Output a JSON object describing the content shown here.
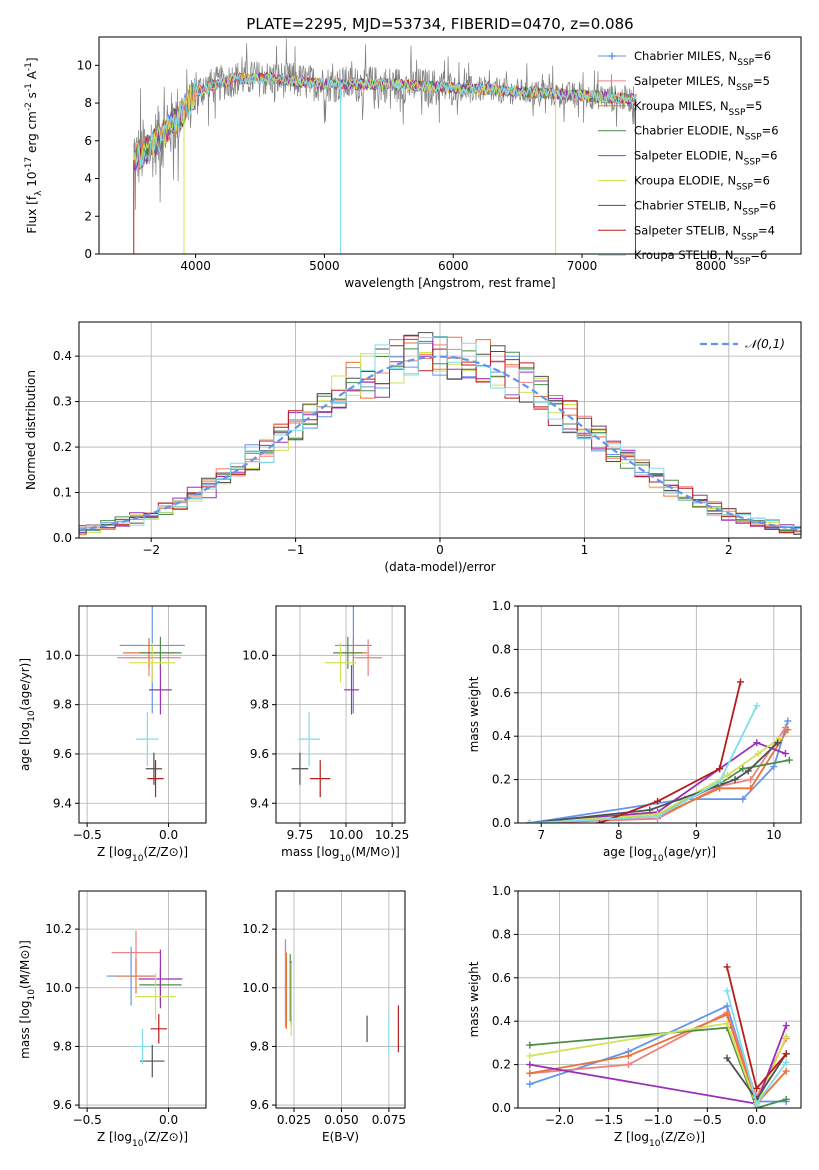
{
  "figure": {
    "title": "PLATE=2295, MJD=53734, FIBERID=0470, z=0.086"
  },
  "colors": [
    "#6495ED",
    "#F08080",
    "#E8743B",
    "#4C8C4A",
    "#9B30B8",
    "#D4E157",
    "#505050",
    "#B71C1C",
    "#80DEEA"
  ],
  "chart_data": [
    {
      "id": "spectrum",
      "type": "line",
      "title": "PLATE=2295, MJD=53734, FIBERID=0470, z=0.086",
      "xlabel": "wavelength [Angstrom, rest frame]",
      "ylabel": "Flux [f_λ 10^-17 erg cm^-2 s^-1 A^-1]",
      "xlim": [
        3250,
        8700
      ],
      "ylim": [
        0,
        11.5
      ],
      "xticks": [
        4000,
        5000,
        6000,
        7000,
        8000
      ],
      "yticks": [
        0,
        2,
        4,
        6,
        8,
        10
      ],
      "grid": false,
      "legend_position": "top-right",
      "continuum": {
        "x": [
          3520,
          3700,
          3900,
          4000,
          4300,
          4600,
          5000,
          5500,
          6000,
          6500,
          7000,
          7400
        ],
        "y": [
          5.0,
          6.0,
          7.5,
          8.6,
          9.3,
          9.3,
          9.0,
          9.0,
          8.8,
          8.6,
          8.4,
          8.2
        ]
      },
      "series": [
        {
          "name": "Chabrier MILES, N_SSP=6",
          "marker": "+"
        },
        {
          "name": "Salpeter MILES, N_SSP=5",
          "marker": "none"
        },
        {
          "name": "Kroupa MILES, N_SSP=5",
          "marker": "none"
        },
        {
          "name": "Chabrier ELODIE, N_SSP=6",
          "marker": "none"
        },
        {
          "name": "Salpeter ELODIE, N_SSP=6",
          "marker": "none"
        },
        {
          "name": "Kroupa ELODIE, N_SSP=6",
          "marker": "none"
        },
        {
          "name": "Chabrier STELIB, N_SSP=6",
          "marker": "none"
        },
        {
          "name": "Salpeter STELIB, N_SSP=4",
          "marker": "none"
        },
        {
          "name": "Kroupa STELIB, N_SSP=6",
          "marker": "none"
        }
      ]
    },
    {
      "id": "residuals",
      "type": "line",
      "xlabel": "(data-model)/error",
      "ylabel": "Normed distribution",
      "xlim": [
        -2.5,
        2.5
      ],
      "ylim": [
        0,
        0.475
      ],
      "xticks": [
        -2,
        -1,
        0,
        1,
        2
      ],
      "yticks": [
        0.0,
        0.1,
        0.2,
        0.3,
        0.4
      ],
      "grid": true,
      "legend_position": "top-right",
      "gaussian_label": "𝒩(0,1)",
      "gaussian": {
        "mean": 0,
        "sigma": 1
      }
    },
    {
      "id": "age-vs-Z",
      "type": "scatter",
      "xlabel": "Z [log10(Z/Z⊙)]",
      "ylabel": "age  [log10(age/yr)]",
      "xlim": [
        -0.55,
        0.23
      ],
      "ylim": [
        9.32,
        10.2
      ],
      "xticks": [
        -0.5,
        0.0
      ],
      "yticks": [
        9.4,
        9.6,
        9.8,
        10.0
      ],
      "grid": true,
      "points": [
        {
          "x": -0.1,
          "y": 10.04,
          "xerr": 0.4,
          "yerr": 0.55
        },
        {
          "x": -0.12,
          "y": 9.99,
          "xerr": 0.39,
          "yerr": 0.15
        },
        {
          "x": -0.12,
          "y": 10.01,
          "xerr": 0.32,
          "yerr": 0.12
        },
        {
          "x": -0.05,
          "y": 10.01,
          "xerr": 0.26,
          "yerr": 0.13
        },
        {
          "x": -0.05,
          "y": 9.86,
          "xerr": 0.14,
          "yerr": 0.2
        },
        {
          "x": -0.1,
          "y": 9.97,
          "xerr": 0.28,
          "yerr": 0.16
        },
        {
          "x": -0.09,
          "y": 9.54,
          "xerr": 0.1,
          "yerr": 0.13
        },
        {
          "x": -0.08,
          "y": 9.5,
          "xerr": 0.1,
          "yerr": 0.15
        },
        {
          "x": -0.13,
          "y": 9.66,
          "xerr": 0.14,
          "yerr": 0.22
        }
      ]
    },
    {
      "id": "age-vs-mass",
      "type": "scatter",
      "xlabel": "mass [log10(M/M⊙)]",
      "ylabel": "",
      "xlim": [
        9.62,
        10.32
      ],
      "ylim": [
        9.32,
        10.2
      ],
      "xticks": [
        9.75,
        10.0,
        10.25
      ],
      "yticks": [
        9.4,
        9.6,
        9.8,
        10.0
      ],
      "grid": true,
      "points": [
        {
          "x": 10.04,
          "y": 10.04,
          "xerr": 0.2,
          "yerr": 0.55
        },
        {
          "x": 10.12,
          "y": 9.99,
          "xerr": 0.15,
          "yerr": 0.15
        },
        {
          "x": 10.04,
          "y": 10.01,
          "xerr": 0.15,
          "yerr": 0.12
        },
        {
          "x": 10.01,
          "y": 10.01,
          "xerr": 0.16,
          "yerr": 0.13
        },
        {
          "x": 10.03,
          "y": 9.86,
          "xerr": 0.08,
          "yerr": 0.2
        },
        {
          "x": 9.97,
          "y": 9.97,
          "xerr": 0.17,
          "yerr": 0.16
        },
        {
          "x": 9.75,
          "y": 9.54,
          "xerr": 0.09,
          "yerr": 0.13
        },
        {
          "x": 9.86,
          "y": 9.5,
          "xerr": 0.11,
          "yerr": 0.15
        },
        {
          "x": 9.8,
          "y": 9.66,
          "xerr": 0.12,
          "yerr": 0.22
        }
      ]
    },
    {
      "id": "massweight-vs-age",
      "type": "line",
      "xlabel": "age  [log10(age/yr)]",
      "ylabel": "mass weight",
      "xlim": [
        6.7,
        10.35
      ],
      "ylim": [
        0,
        1.0
      ],
      "xticks": [
        7,
        8,
        9,
        10
      ],
      "yticks": [
        0.0,
        0.2,
        0.4,
        0.6,
        0.8,
        1.0
      ],
      "grid": true,
      "series": [
        {
          "x": [
            6.85,
            8.85,
            9.6,
            10.0,
            10.18
          ],
          "y": [
            0.0,
            0.11,
            0.11,
            0.26,
            0.47
          ]
        },
        {
          "x": [
            6.85,
            8.5,
            9.3,
            9.7,
            10.15
          ],
          "y": [
            0.0,
            0.02,
            0.17,
            0.2,
            0.44
          ]
        },
        {
          "x": [
            6.85,
            8.5,
            9.3,
            9.7,
            10.18
          ],
          "y": [
            0.0,
            0.03,
            0.16,
            0.16,
            0.43
          ]
        },
        {
          "x": [
            6.85,
            8.5,
            9.3,
            9.6,
            10.2
          ],
          "y": [
            0.0,
            0.04,
            0.18,
            0.25,
            0.29
          ]
        },
        {
          "x": [
            6.85,
            8.5,
            9.3,
            9.78,
            10.15
          ],
          "y": [
            0.0,
            0.05,
            0.25,
            0.37,
            0.32
          ]
        },
        {
          "x": [
            6.85,
            8.5,
            9.4,
            9.8,
            10.07
          ],
          "y": [
            0.0,
            0.04,
            0.22,
            0.32,
            0.39
          ]
        },
        {
          "x": [
            6.85,
            8.4,
            9.5,
            9.67,
            10.05
          ],
          "y": [
            0.0,
            0.06,
            0.2,
            0.24,
            0.37
          ]
        },
        {
          "x": [
            7.75,
            8.5,
            9.3,
            9.57
          ],
          "y": [
            0.0,
            0.1,
            0.25,
            0.65
          ]
        },
        {
          "x": [
            6.85,
            8.5,
            9.3,
            9.78
          ],
          "y": [
            0.0,
            0.03,
            0.19,
            0.54
          ]
        }
      ]
    },
    {
      "id": "mass-vs-Z",
      "type": "scatter",
      "xlabel": "Z [log10(Z/Z⊙)]",
      "ylabel": "mass [log10(M/M⊙)]",
      "xlim": [
        -0.55,
        0.23
      ],
      "ylim": [
        9.59,
        10.33
      ],
      "xticks": [
        -0.5,
        0.0
      ],
      "yticks": [
        9.6,
        9.8,
        10.0,
        10.2
      ],
      "grid": true,
      "points": [
        {
          "x": -0.23,
          "y": 10.04,
          "xerr": 0.3,
          "yerr": 0.2
        },
        {
          "x": -0.2,
          "y": 10.12,
          "xerr": 0.3,
          "yerr": 0.15
        },
        {
          "x": -0.2,
          "y": 10.04,
          "xerr": 0.25,
          "yerr": 0.12
        },
        {
          "x": -0.05,
          "y": 10.01,
          "xerr": 0.26,
          "yerr": 0.12
        },
        {
          "x": -0.05,
          "y": 10.03,
          "xerr": 0.27,
          "yerr": 0.2
        },
        {
          "x": -0.08,
          "y": 9.97,
          "xerr": 0.25,
          "yerr": 0.16
        },
        {
          "x": -0.1,
          "y": 9.75,
          "xerr": 0.15,
          "yerr": 0.11
        },
        {
          "x": -0.06,
          "y": 9.86,
          "xerr": 0.1,
          "yerr": 0.1
        },
        {
          "x": -0.16,
          "y": 9.8,
          "xerr": 0.1,
          "yerr": 0.12
        }
      ]
    },
    {
      "id": "mass-vs-EBV",
      "type": "scatter",
      "xlabel": "E(B-V)",
      "ylabel": "",
      "xlim": [
        0.0155,
        0.0835
      ],
      "ylim": [
        9.59,
        10.33
      ],
      "xticks": [
        0.025,
        0.05,
        0.075
      ],
      "yticks": [
        9.6,
        9.8,
        10.0,
        10.2
      ],
      "grid": true,
      "points": [
        {
          "x": 0.0205,
          "y": 10.03,
          "xerr": 0.0,
          "yerr": 0.27
        },
        {
          "x": 0.0205,
          "y": 10.01,
          "xerr": 0.0,
          "yerr": 0.29
        },
        {
          "x": 0.021,
          "y": 9.99,
          "xerr": 0.0,
          "yerr": 0.26
        },
        {
          "x": 0.023,
          "y": 10.0,
          "xerr": 0.0,
          "yerr": 0.23
        },
        {
          "x": 0.0235,
          "y": 9.98,
          "xerr": 0.0,
          "yerr": 0.22
        },
        {
          "x": 0.0235,
          "y": 9.96,
          "xerr": 0.0,
          "yerr": 0.25
        },
        {
          "x": 0.0635,
          "y": 9.86,
          "xerr": 0.0,
          "yerr": 0.09
        },
        {
          "x": 0.08,
          "y": 9.86,
          "xerr": 0.0,
          "yerr": 0.16
        },
        {
          "x": 0.075,
          "y": 9.84,
          "xerr": 0.0,
          "yerr": 0.14
        }
      ]
    },
    {
      "id": "massweight-vs-Z",
      "type": "line",
      "xlabel": "Z [log10(Z/Z⊙)]",
      "ylabel": "mass weight",
      "xlim": [
        -2.42,
        0.45
      ],
      "ylim": [
        0,
        1.0
      ],
      "xticks": [
        -2.0,
        -1.5,
        -1.0,
        -0.5,
        0.0
      ],
      "yticks": [
        0.0,
        0.2,
        0.4,
        0.6,
        0.8,
        1.0
      ],
      "grid": true,
      "series": [
        {
          "x": [
            -2.3,
            -1.3,
            -0.3,
            0.0,
            0.3
          ],
          "y": [
            0.11,
            0.26,
            0.47,
            0.03,
            0.03
          ]
        },
        {
          "x": [
            -2.3,
            -1.3,
            -0.3,
            0.0,
            0.3
          ],
          "y": [
            0.16,
            0.2,
            0.44,
            0.05,
            0.32
          ]
        },
        {
          "x": [
            -2.3,
            -1.3,
            -0.3,
            0.0,
            0.3
          ],
          "y": [
            0.16,
            0.24,
            0.43,
            0.02,
            0.17
          ]
        },
        {
          "x": [
            -2.3,
            -0.3,
            0.0,
            0.3
          ],
          "y": [
            0.29,
            0.37,
            0.0,
            0.04
          ]
        },
        {
          "x": [
            -2.3,
            0.0,
            0.3
          ],
          "y": [
            0.2,
            0.02,
            0.38
          ]
        },
        {
          "x": [
            -2.3,
            -0.3,
            0.0,
            0.3
          ],
          "y": [
            0.24,
            0.39,
            0.01,
            0.33
          ]
        },
        {
          "x": [
            -0.3,
            0.0,
            0.3
          ],
          "y": [
            0.23,
            0.04,
            0.25
          ]
        },
        {
          "x": [
            -0.3,
            0.0,
            0.3
          ],
          "y": [
            0.65,
            0.09,
            0.25
          ]
        },
        {
          "x": [
            -0.3,
            0.0,
            0.3
          ],
          "y": [
            0.54,
            0.02,
            0.21
          ]
        }
      ]
    }
  ]
}
